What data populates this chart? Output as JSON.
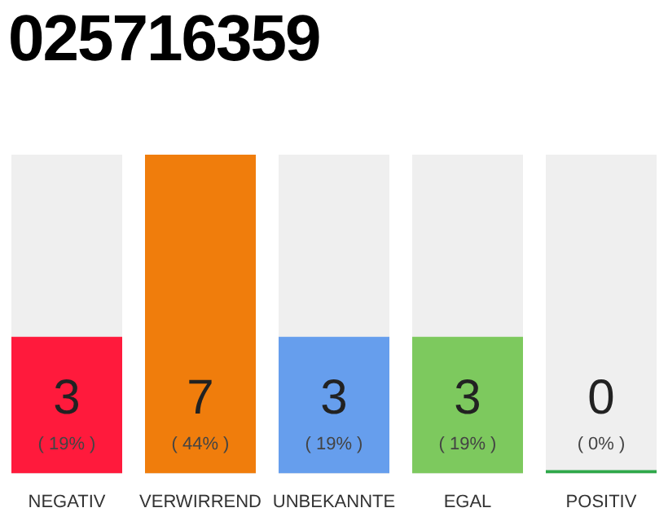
{
  "chart_data": {
    "type": "bar",
    "title": "025716359",
    "categories": [
      "NEGATIV",
      "VERWIRREND",
      "UNBEKANNTE",
      "EGAL",
      "POSITIV"
    ],
    "values": [
      3,
      7,
      3,
      3,
      0
    ],
    "colors": [
      "#ff1a3c",
      "#f07d0c",
      "#669eed",
      "#7dc95e",
      "#2ea84a"
    ],
    "data_labels": true,
    "annotations": [
      "( 19% )",
      "( 44% )",
      "( 19% )",
      "( 19% )",
      "( 0% )"
    ],
    "tick_labels": "x",
    "grid": false,
    "legend": false
  }
}
